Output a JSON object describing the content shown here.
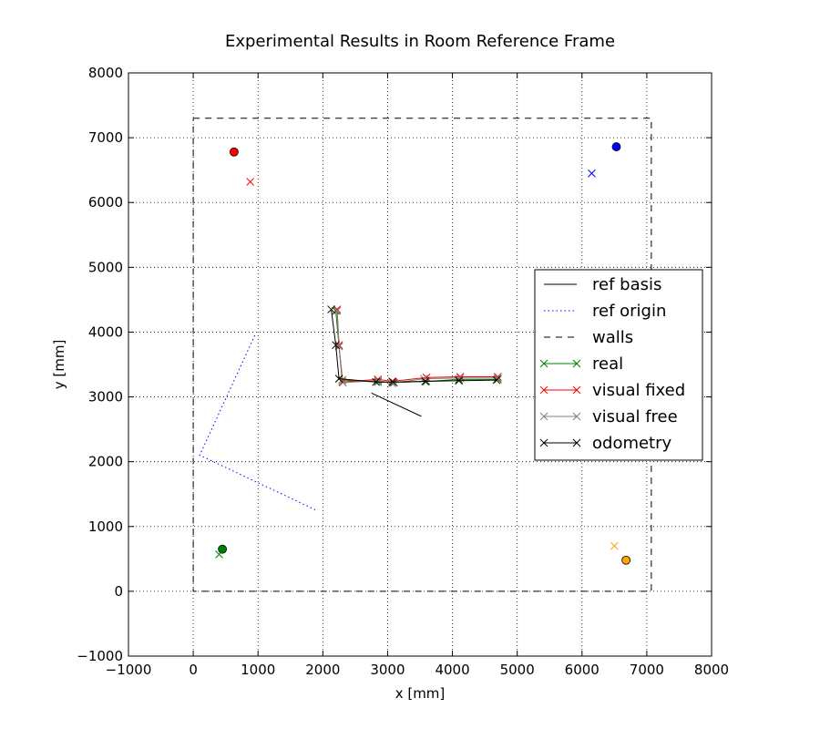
{
  "chart_data": {
    "type": "line",
    "title": "Experimental Results in Room Reference Frame",
    "xlabel": "x [mm]",
    "ylabel": "y [mm]",
    "xlim": [
      -1000,
      8000
    ],
    "ylim": [
      -1000,
      8000
    ],
    "xticks": [
      -1000,
      0,
      1000,
      2000,
      3000,
      4000,
      5000,
      6000,
      7000,
      8000
    ],
    "yticks": [
      -1000,
      0,
      1000,
      2000,
      3000,
      4000,
      5000,
      6000,
      7000,
      8000
    ],
    "xtick_labels": [
      "−1000",
      "0",
      "1000",
      "2000",
      "3000",
      "4000",
      "5000",
      "6000",
      "7000",
      "8000"
    ],
    "ytick_labels": [
      "−1000",
      "0",
      "1000",
      "2000",
      "3000",
      "4000",
      "5000",
      "6000",
      "7000",
      "8000"
    ],
    "grid": true,
    "legend_position": "center-right",
    "series": [
      {
        "name": "ref basis",
        "style": "solid",
        "marker": "none",
        "color": "#000000",
        "x": [
          2750,
          3520
        ],
        "y": [
          3060,
          2700
        ]
      },
      {
        "name": "ref origin",
        "style": "dotted",
        "marker": "none",
        "color": "#0000ff",
        "x": [
          950,
          100,
          1900
        ],
        "y": [
          3950,
          2100,
          1250
        ]
      },
      {
        "name": "walls",
        "style": "dashed",
        "marker": "none",
        "color": "#000000",
        "x": [
          0,
          7070,
          7070,
          0,
          0
        ],
        "y": [
          7300,
          7300,
          0,
          0,
          7300
        ]
      },
      {
        "name": "real",
        "style": "solid",
        "marker": "x",
        "color": "#008000",
        "x": [
          4700,
          4100,
          3600,
          3100,
          2850,
          2300,
          2250,
          2200
        ],
        "y": [
          3270,
          3270,
          3240,
          3220,
          3230,
          3260,
          3780,
          4330
        ]
      },
      {
        "name": "visual fixed",
        "style": "solid",
        "marker": "x",
        "color": "#ff0000",
        "x": [
          4700,
          4120,
          3600,
          3070,
          2850,
          2300,
          2250,
          2220
        ],
        "y": [
          3310,
          3310,
          3300,
          3240,
          3270,
          3230,
          3800,
          4350
        ]
      },
      {
        "name": "visual free",
        "style": "solid",
        "marker": "x",
        "color": "#808080",
        "x": [
          4700,
          4120,
          3560,
          3070,
          2850,
          2310,
          2250,
          2220
        ],
        "y": [
          3290,
          3290,
          3280,
          3210,
          3250,
          3220,
          3780,
          4330
        ]
      },
      {
        "name": "odometry",
        "style": "solid",
        "marker": "x",
        "color": "#000000",
        "x": [
          4680,
          4100,
          3580,
          3080,
          2820,
          2250,
          2200,
          2130
        ],
        "y": [
          3260,
          3250,
          3240,
          3230,
          3230,
          3280,
          3800,
          4350
        ]
      }
    ],
    "markers": [
      {
        "shape": "circle",
        "color": "#ff0000",
        "x": 630,
        "y": 6780
      },
      {
        "shape": "x",
        "color": "#ff0000",
        "x": 880,
        "y": 6320
      },
      {
        "shape": "circle",
        "color": "#0000ff",
        "x": 6530,
        "y": 6860
      },
      {
        "shape": "x",
        "color": "#0000ff",
        "x": 6150,
        "y": 6450
      },
      {
        "shape": "circle",
        "color": "#008000",
        "x": 450,
        "y": 650
      },
      {
        "shape": "x",
        "color": "#008000",
        "x": 400,
        "y": 570
      },
      {
        "shape": "circle",
        "color": "#ffa500",
        "x": 6680,
        "y": 480
      },
      {
        "shape": "x",
        "color": "#ffa500",
        "x": 6500,
        "y": 700
      }
    ]
  }
}
